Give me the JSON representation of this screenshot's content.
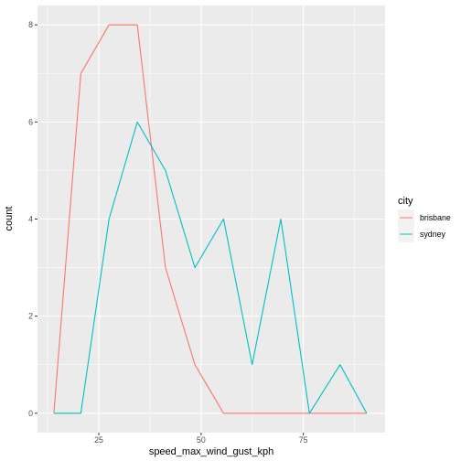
{
  "chart_data": {
    "type": "line",
    "xlabel": "speed_max_wind_gust_kph",
    "ylabel": "count",
    "legend_title": "city",
    "legend_position": "right",
    "grid": true,
    "xlim": [
      10,
      95
    ],
    "ylim": [
      -0.4,
      8.4
    ],
    "x_ticks": [
      25,
      50,
      75
    ],
    "y_ticks": [
      0,
      2,
      4,
      6,
      8
    ],
    "series": [
      {
        "name": "brisbane",
        "color": "#F8766D",
        "x": [
          14.0,
          20.6,
          27.5,
          34.4,
          41.3,
          48.5,
          55.5,
          62.5,
          69.5,
          76.5,
          84.0,
          90.5
        ],
        "y": [
          0,
          7,
          8,
          8,
          3,
          1,
          0,
          0,
          0,
          0,
          0,
          0
        ]
      },
      {
        "name": "sydney",
        "color": "#00BFC4",
        "x": [
          14.0,
          20.6,
          27.5,
          34.4,
          41.3,
          48.5,
          55.5,
          62.5,
          69.5,
          76.5,
          84.0,
          90.5
        ],
        "y": [
          0,
          0,
          4,
          6,
          5,
          3,
          4,
          1,
          4,
          0,
          1,
          0
        ]
      }
    ]
  }
}
